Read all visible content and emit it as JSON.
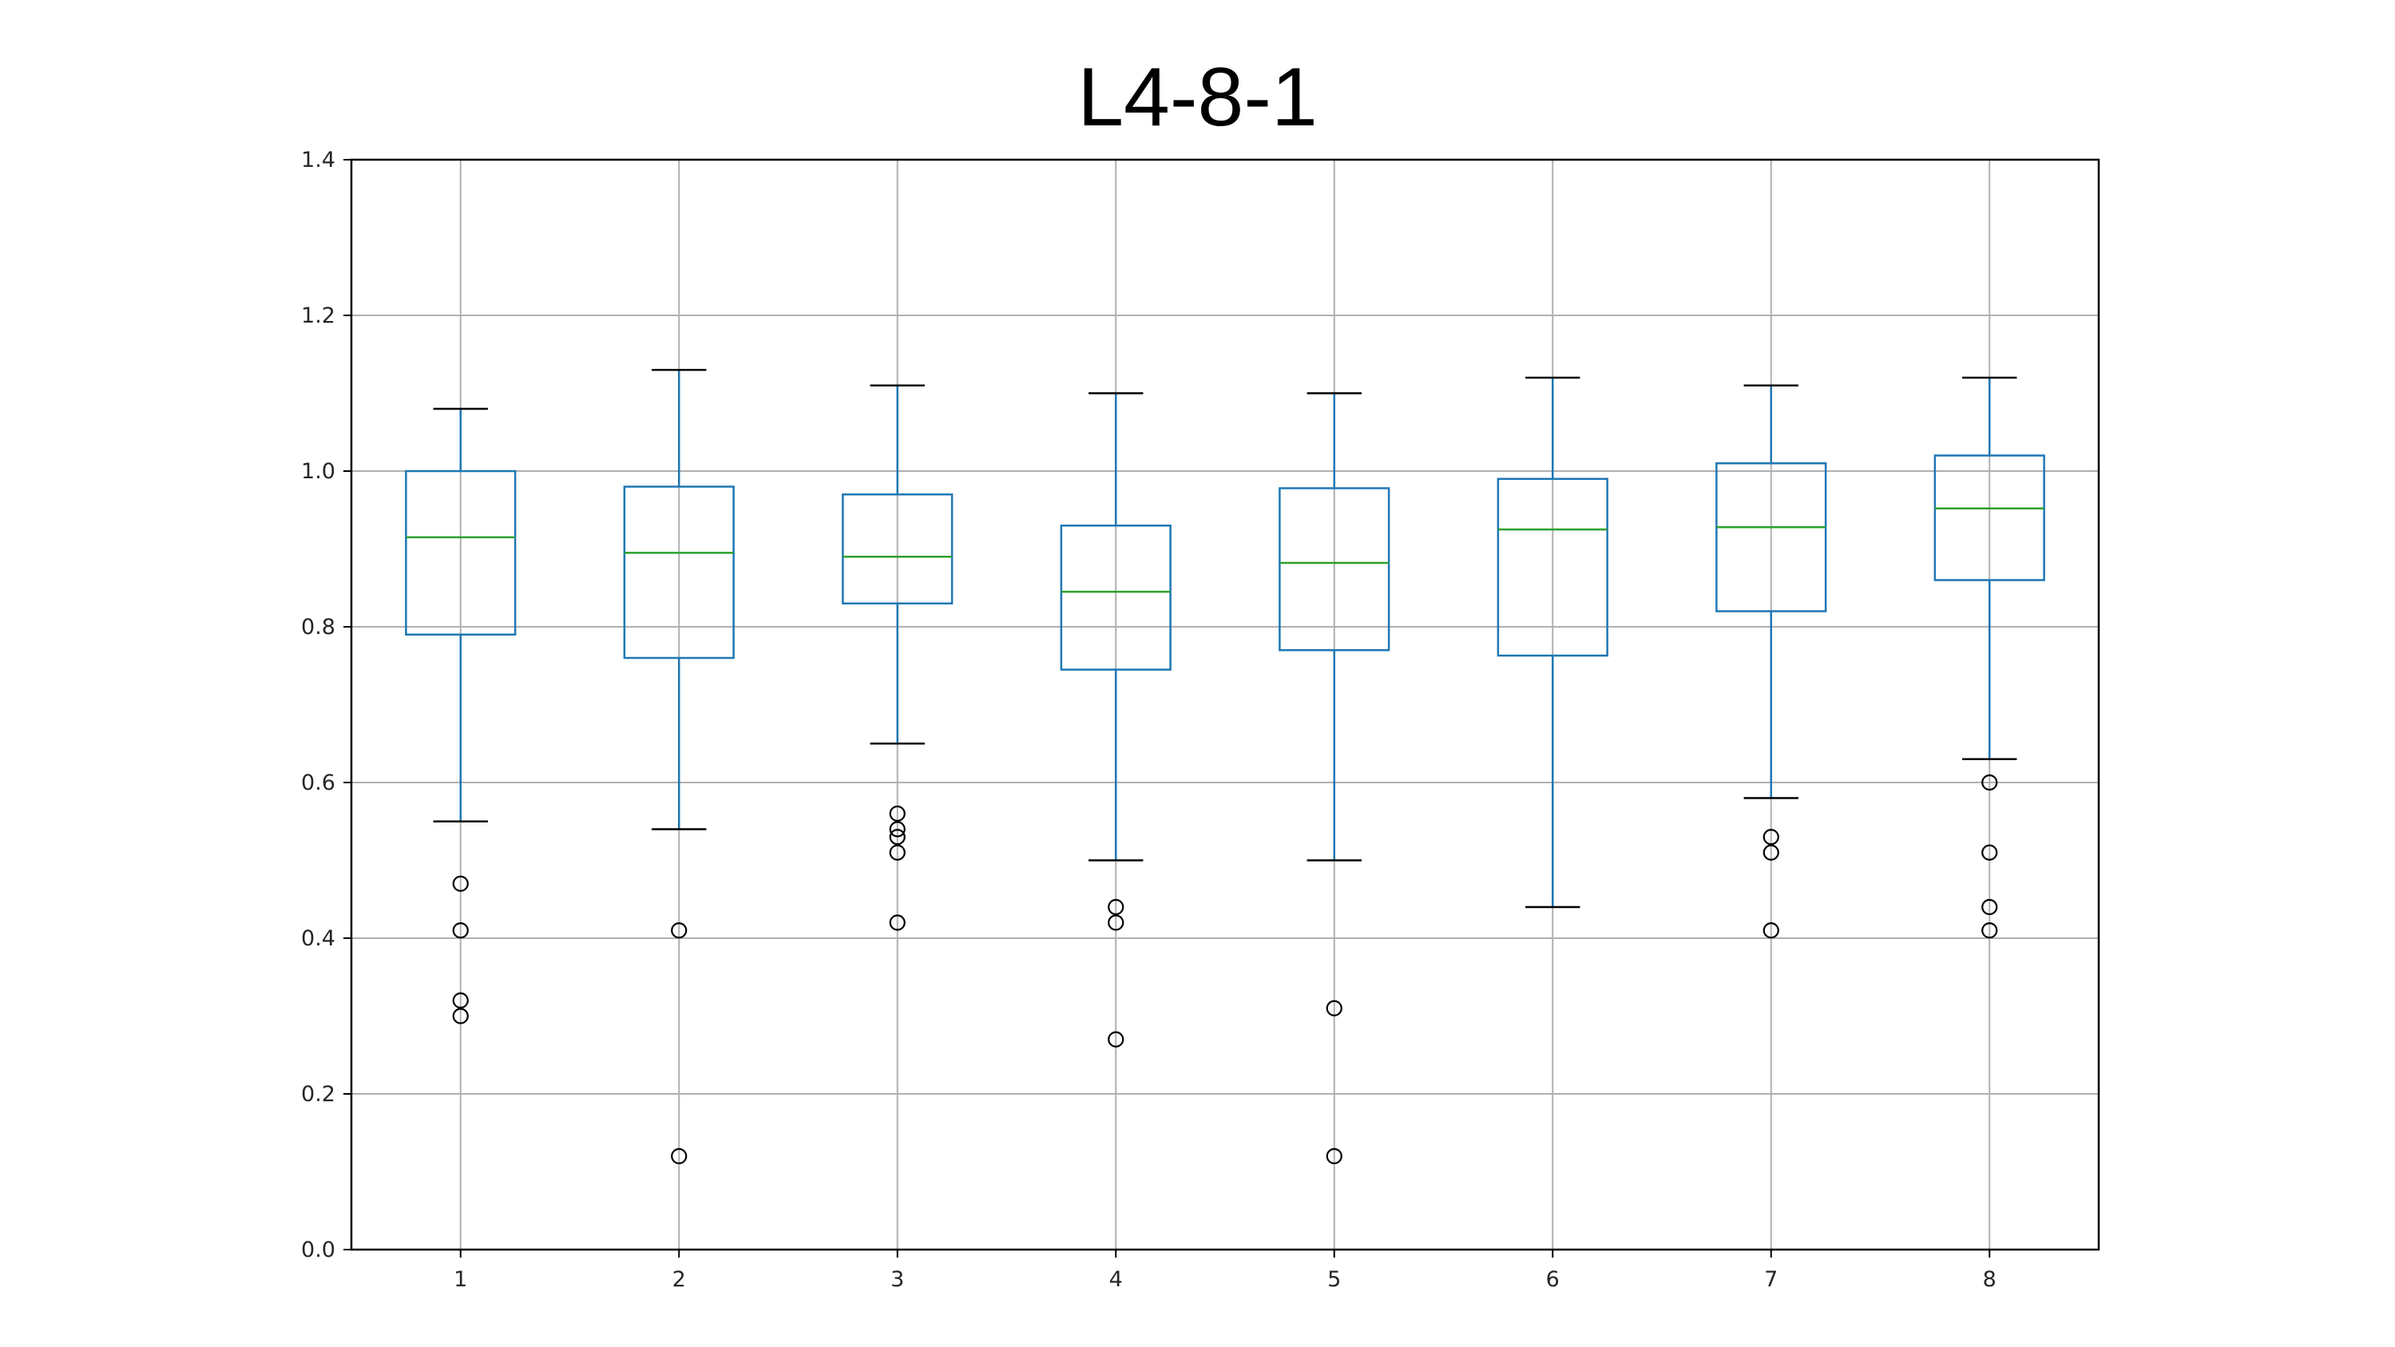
{
  "chart_data": {
    "type": "box",
    "title": "L4-8-1",
    "xlabel": "",
    "ylabel": "",
    "categories": [
      "1",
      "2",
      "3",
      "4",
      "5",
      "6",
      "7",
      "8"
    ],
    "ylim": [
      0.0,
      1.4
    ],
    "yticks": [
      "0.0",
      "0.2",
      "0.4",
      "0.6",
      "0.8",
      "1.0",
      "1.2",
      "1.4"
    ],
    "grid": true,
    "legend": "none",
    "boxes": [
      {
        "whisker_low": 0.55,
        "q1": 0.79,
        "median": 0.915,
        "q3": 1.0,
        "whisker_high": 1.08,
        "outliers": [
          0.47,
          0.41,
          0.32,
          0.3
        ]
      },
      {
        "whisker_low": 0.54,
        "q1": 0.76,
        "median": 0.895,
        "q3": 0.98,
        "whisker_high": 1.13,
        "outliers": [
          0.41,
          0.12
        ]
      },
      {
        "whisker_low": 0.65,
        "q1": 0.83,
        "median": 0.89,
        "q3": 0.97,
        "whisker_high": 1.11,
        "outliers": [
          0.56,
          0.54,
          0.53,
          0.51,
          0.42
        ]
      },
      {
        "whisker_low": 0.5,
        "q1": 0.745,
        "median": 0.845,
        "q3": 0.93,
        "whisker_high": 1.1,
        "outliers": [
          0.44,
          0.42,
          0.27
        ]
      },
      {
        "whisker_low": 0.5,
        "q1": 0.77,
        "median": 0.882,
        "q3": 0.978,
        "whisker_high": 1.1,
        "outliers": [
          0.31,
          0.12
        ]
      },
      {
        "whisker_low": 0.44,
        "q1": 0.763,
        "median": 0.925,
        "q3": 0.99,
        "whisker_high": 1.12,
        "outliers": []
      },
      {
        "whisker_low": 0.58,
        "q1": 0.82,
        "median": 0.928,
        "q3": 1.01,
        "whisker_high": 1.11,
        "outliers": [
          0.53,
          0.51,
          0.41
        ]
      },
      {
        "whisker_low": 0.63,
        "q1": 0.86,
        "median": 0.952,
        "q3": 1.02,
        "whisker_high": 1.12,
        "outliers": [
          0.6,
          0.51,
          0.44,
          0.41
        ]
      }
    ],
    "colors": {
      "box": "#1f77b4",
      "median": "#2ca02c",
      "whisker_cap": "#000000",
      "grid": "#b0b0b0",
      "outlier": "#000000"
    }
  }
}
